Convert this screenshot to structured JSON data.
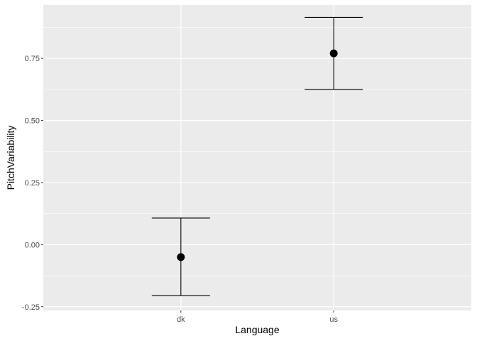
{
  "chart_data": {
    "type": "pointrange",
    "xlabel": "Language",
    "ylabel": "PitchVariability",
    "categories": [
      "dk",
      "us"
    ],
    "points": [
      {
        "x": "dk",
        "y": -0.05,
        "ymin": -0.205,
        "ymax": 0.107
      },
      {
        "x": "us",
        "y": 0.77,
        "ymin": 0.625,
        "ymax": 0.915
      }
    ],
    "ylim": [
      -0.265,
      0.965
    ],
    "yticks": [
      -0.25,
      0.0,
      0.25,
      0.5,
      0.75
    ],
    "ytick_labels": [
      "-0.25",
      "0.00",
      "0.25",
      "0.50",
      "0.75"
    ],
    "grid": true,
    "colors": {
      "panel": "#ebebeb",
      "grid_major": "#ffffff",
      "marks": "#000000",
      "tick_text": "#4d4d4d"
    }
  }
}
